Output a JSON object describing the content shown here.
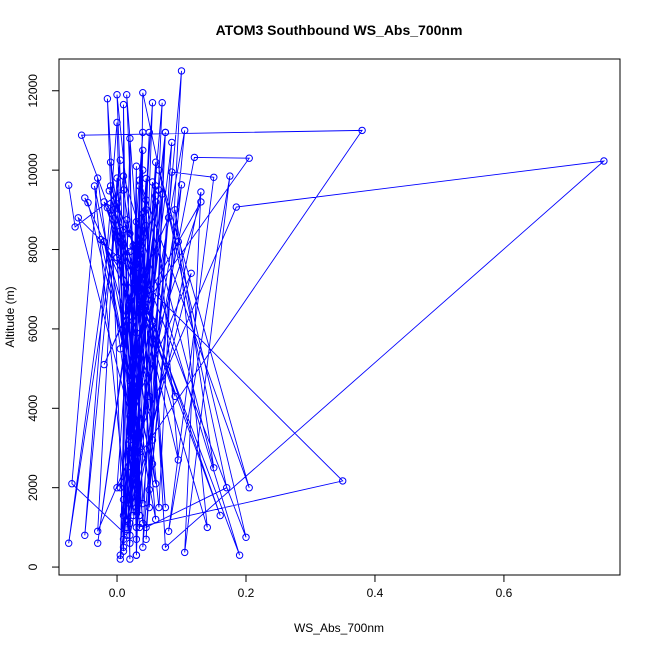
{
  "chart_data": {
    "type": "line",
    "title": "ATOM3 Southbound WS_Abs_700nm",
    "xlabel": "WS_Abs_700nm",
    "ylabel": "Altitude (m)",
    "xlim": [
      -0.09,
      0.78
    ],
    "ylim": [
      -200,
      12800
    ],
    "x_ticks": [
      0.0,
      0.2,
      0.4,
      0.6
    ],
    "x_tick_labels": [
      "0.0",
      "0.2",
      "0.4",
      "0.6"
    ],
    "y_ticks": [
      0,
      2000,
      4000,
      6000,
      8000,
      10000,
      12000
    ],
    "y_tick_labels": [
      "0",
      "2000",
      "4000",
      "6000",
      "8000",
      "10000",
      "12000"
    ],
    "grid": false,
    "legend": "none",
    "series": [
      {
        "color": "#0000ff",
        "marker": "open-circle",
        "points": [
          [
            -0.075,
            9620
          ],
          [
            -0.065,
            8570
          ],
          [
            0.01,
            9500
          ],
          [
            0.02,
            8400
          ],
          [
            -0.012,
            9480
          ],
          [
            0.045,
            6150
          ],
          [
            -0.02,
            9200
          ],
          [
            0.03,
            8100
          ],
          [
            0.0,
            7800
          ],
          [
            0.02,
            6700
          ],
          [
            -0.05,
            9300
          ],
          [
            -0.045,
            9180
          ],
          [
            0.055,
            2600
          ],
          [
            0.1,
            9630
          ],
          [
            0.015,
            1000
          ],
          [
            0.115,
            7400
          ],
          [
            0.025,
            4000
          ],
          [
            0.04,
            10000
          ],
          [
            0.03,
            1400
          ],
          [
            0.045,
            9790
          ],
          [
            0.01,
            1300
          ],
          [
            0.095,
            8200
          ],
          [
            0.12,
            10320
          ],
          [
            0.205,
            10300
          ],
          [
            0.025,
            6200
          ],
          [
            0.13,
            9200
          ],
          [
            0.02,
            3800
          ],
          [
            0.06,
            9600
          ],
          [
            0.04,
            500
          ],
          [
            0.085,
            9950
          ],
          [
            0.15,
            9820
          ],
          [
            0.08,
            900
          ],
          [
            0.175,
            9850
          ],
          [
            0.105,
            370
          ],
          [
            0.13,
            9450
          ],
          [
            0.02,
            800
          ],
          [
            0.05,
            10950
          ],
          [
            0.03,
            1500
          ],
          [
            0.075,
            10950
          ],
          [
            0.02,
            3200
          ],
          [
            0.105,
            11000
          ],
          [
            0.045,
            1000
          ],
          [
            0.17,
            2000
          ],
          [
            0.04,
            11950
          ],
          [
            0.03,
            300
          ],
          [
            0.055,
            11700
          ],
          [
            0.01,
            500
          ],
          [
            0.07,
            11700
          ],
          [
            0.05,
            4300
          ],
          [
            0.015,
            11900
          ],
          [
            0.04,
            1600
          ],
          [
            0.1,
            12500
          ],
          [
            0.065,
            1500
          ],
          [
            0.0,
            11900
          ],
          [
            0.025,
            1300
          ],
          [
            -0.015,
            11800
          ],
          [
            0.01,
            400
          ],
          [
            0.01,
            11650
          ],
          [
            0.02,
            200
          ],
          [
            0.0,
            11200
          ],
          [
            -0.05,
            800
          ],
          [
            0.005,
            10250
          ],
          [
            -0.075,
            600
          ],
          [
            0.01,
            9850
          ],
          [
            0.19,
            300
          ],
          [
            -0.055,
            10880
          ],
          [
            0.38,
            11000
          ],
          [
            0.0,
            2000
          ],
          [
            0.04,
            10950
          ],
          [
            0.005,
            300
          ],
          [
            0.04,
            10500
          ],
          [
            0.025,
            2200
          ],
          [
            0.06,
            10200
          ],
          [
            0.05,
            1500
          ],
          [
            0.075,
            10950
          ],
          [
            0.045,
            700
          ],
          [
            0.085,
            10700
          ],
          [
            0.005,
            200
          ],
          [
            0.02,
            10800
          ],
          [
            0.03,
            300
          ],
          [
            0.03,
            10100
          ],
          [
            0.02,
            1600
          ],
          [
            0.055,
            9700
          ],
          [
            0.015,
            800
          ],
          [
            -0.07,
            2100
          ],
          [
            -0.03,
            9800
          ],
          [
            0.03,
            2500
          ],
          [
            -0.01,
            10200
          ],
          [
            0.06,
            2100
          ],
          [
            -0.035,
            9600
          ],
          [
            0.02,
            600
          ],
          [
            0.035,
            9600
          ],
          [
            0.035,
            1300
          ],
          [
            0.06,
            9350
          ],
          [
            0.005,
            2000
          ],
          [
            0.065,
            9500
          ],
          [
            0.01,
            1700
          ],
          [
            0.07,
            9400
          ],
          [
            0.035,
            2900
          ],
          [
            -0.06,
            8800
          ],
          [
            0.35,
            2170
          ],
          [
            0.03,
            1000
          ],
          [
            0.0,
            8600
          ],
          [
            0.05,
            1950
          ],
          [
            0.04,
            8900
          ],
          [
            -0.03,
            600
          ],
          [
            0.045,
            9250
          ],
          [
            0.02,
            2950
          ],
          [
            0.03,
            8700
          ],
          [
            0.055,
            6200
          ],
          [
            -0.025,
            8250
          ],
          [
            0.02,
            4700
          ],
          [
            0.045,
            7450
          ],
          [
            -0.02,
            5100
          ],
          [
            0.08,
            8800
          ],
          [
            0.02,
            1100
          ],
          [
            0.06,
            9200
          ],
          [
            0.095,
            2700
          ],
          [
            0.0,
            9150
          ],
          [
            0.04,
            1100
          ],
          [
            0.01,
            8500
          ],
          [
            0.035,
            1300
          ],
          [
            0.02,
            7950
          ],
          [
            0.03,
            700
          ],
          [
            0.015,
            8750
          ],
          [
            0.09,
            4300
          ],
          [
            0.005,
            8200
          ],
          [
            0.015,
            1200
          ],
          [
            0.025,
            8100
          ],
          [
            0.06,
            1200
          ],
          [
            -0.02,
            8200
          ],
          [
            0.015,
            6200
          ],
          [
            0.045,
            8600
          ],
          [
            0.075,
            1500
          ],
          [
            0.04,
            8300
          ],
          [
            0.055,
            3200
          ],
          [
            0.035,
            8000
          ],
          [
            0.01,
            700
          ],
          [
            0.03,
            7400
          ],
          [
            0.03,
            5900
          ],
          [
            -0.015,
            9050
          ],
          [
            0.16,
            1300
          ],
          [
            -0.005,
            9000
          ],
          [
            0.14,
            1000
          ],
          [
            0.09,
            9000
          ],
          [
            0.15,
            2500
          ],
          [
            0.035,
            9750
          ],
          [
            0.205,
            2000
          ],
          [
            0.065,
            10000
          ],
          [
            0.2,
            750
          ],
          [
            -0.01,
            9600
          ],
          [
            0.035,
            1000
          ],
          [
            0.0,
            9800
          ],
          [
            -0.03,
            900
          ],
          [
            0.185,
            9070
          ],
          [
            0.755,
            10230
          ],
          [
            0.075,
            500
          ],
          [
            0.045,
            9000
          ],
          [
            0.005,
            5500
          ],
          [
            0.03,
            7000
          ]
        ]
      }
    ]
  }
}
